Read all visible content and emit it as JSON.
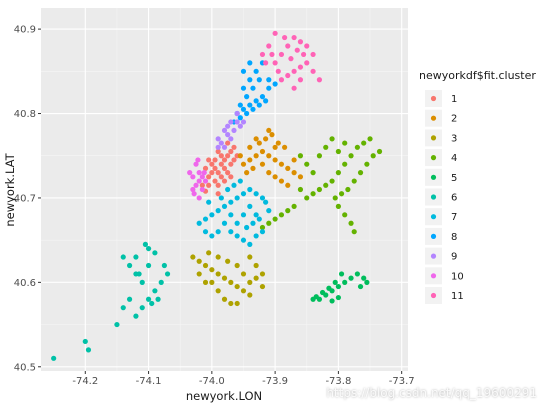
{
  "chart_data": {
    "type": "scatter",
    "xlabel": "newyork.LON",
    "ylabel": "newyork.LAT",
    "xlim": [
      -74.27,
      -73.69
    ],
    "ylim": [
      40.495,
      40.925
    ],
    "x_ticks": [
      -74.2,
      -74.1,
      -74.0,
      -73.9,
      -73.8,
      -73.7
    ],
    "x_tick_labels": [
      "-74.2",
      "-74.1",
      "-74.0",
      "-73.9",
      "-73.8",
      "-73.7"
    ],
    "y_ticks": [
      40.5,
      40.6,
      40.7,
      40.8,
      40.9
    ],
    "y_tick_labels": [
      "40.5",
      "40.6",
      "40.7",
      "40.8",
      "40.9"
    ],
    "grid": true,
    "background": "#ebebeb",
    "legend": {
      "title": "newyorkdf$fit.cluster",
      "position": "right",
      "entries": [
        "1",
        "2",
        "3",
        "4",
        "5",
        "6",
        "7",
        "8",
        "9",
        "10",
        "11"
      ]
    },
    "series": [
      {
        "name": "1",
        "color": "#F8766D",
        "points": [
          [
            -74.01,
            40.708
          ],
          [
            -74.005,
            40.715
          ],
          [
            -73.995,
            40.72
          ],
          [
            -73.99,
            40.73
          ],
          [
            -73.985,
            40.74
          ],
          [
            -73.98,
            40.745
          ],
          [
            -73.975,
            40.75
          ],
          [
            -73.97,
            40.755
          ],
          [
            -73.965,
            40.76
          ],
          [
            -73.985,
            40.725
          ],
          [
            -73.995,
            40.735
          ],
          [
            -74.0,
            40.74
          ],
          [
            -74.005,
            40.745
          ],
          [
            -74.0,
            40.73
          ],
          [
            -73.99,
            40.715
          ],
          [
            -73.98,
            40.735
          ],
          [
            -73.975,
            40.73
          ],
          [
            -73.97,
            40.74
          ],
          [
            -73.965,
            40.745
          ],
          [
            -73.96,
            40.75
          ],
          [
            -74.005,
            40.725
          ],
          [
            -73.995,
            40.745
          ],
          [
            -73.985,
            40.75
          ],
          [
            -73.975,
            40.765
          ],
          [
            -73.99,
            40.755
          ],
          [
            -74.01,
            40.735
          ],
          [
            -73.98,
            40.72
          ],
          [
            -73.97,
            40.725
          ],
          [
            -74.015,
            40.715
          ],
          [
            -73.99,
            40.705
          ]
        ]
      },
      {
        "name": "2",
        "color": "#DB8E00",
        "points": [
          [
            -73.95,
            40.74
          ],
          [
            -73.94,
            40.745
          ],
          [
            -73.93,
            40.75
          ],
          [
            -73.92,
            40.755
          ],
          [
            -73.91,
            40.75
          ],
          [
            -73.9,
            40.745
          ],
          [
            -73.89,
            40.74
          ],
          [
            -73.88,
            40.735
          ],
          [
            -73.87,
            40.73
          ],
          [
            -73.925,
            40.765
          ],
          [
            -73.915,
            40.77
          ],
          [
            -73.905,
            40.775
          ],
          [
            -73.895,
            40.765
          ],
          [
            -73.885,
            40.76
          ],
          [
            -73.935,
            40.735
          ],
          [
            -73.945,
            40.73
          ],
          [
            -73.91,
            40.73
          ],
          [
            -73.9,
            40.725
          ],
          [
            -73.89,
            40.72
          ],
          [
            -73.88,
            40.715
          ],
          [
            -73.86,
            40.725
          ],
          [
            -73.92,
            40.74
          ],
          [
            -73.94,
            40.76
          ],
          [
            -73.93,
            40.77
          ],
          [
            -73.955,
            40.75
          ],
          [
            -73.9,
            40.76
          ],
          [
            -73.87,
            40.745
          ],
          [
            -73.91,
            40.78
          ]
        ]
      },
      {
        "name": "3",
        "color": "#AEA200",
        "points": [
          [
            -74.03,
            40.63
          ],
          [
            -74.02,
            40.625
          ],
          [
            -74.01,
            40.62
          ],
          [
            -74.0,
            40.615
          ],
          [
            -73.99,
            40.61
          ],
          [
            -73.98,
            40.605
          ],
          [
            -73.97,
            40.6
          ],
          [
            -73.96,
            40.595
          ],
          [
            -73.95,
            40.59
          ],
          [
            -73.94,
            40.585
          ],
          [
            -74.0,
            40.6
          ],
          [
            -73.99,
            40.59
          ],
          [
            -73.98,
            40.58
          ],
          [
            -73.97,
            40.575
          ],
          [
            -73.96,
            40.575
          ],
          [
            -74.02,
            40.61
          ],
          [
            -74.01,
            40.6
          ],
          [
            -73.95,
            40.61
          ],
          [
            -73.94,
            40.6
          ],
          [
            -73.93,
            40.605
          ],
          [
            -73.92,
            40.61
          ],
          [
            -73.93,
            40.62
          ],
          [
            -73.94,
            40.63
          ],
          [
            -74.005,
            40.635
          ],
          [
            -73.99,
            40.63
          ],
          [
            -73.975,
            40.625
          ],
          [
            -73.96,
            40.62
          ],
          [
            -73.92,
            40.595
          ]
        ]
      },
      {
        "name": "4",
        "color": "#64B200",
        "points": [
          [
            -73.85,
            40.7
          ],
          [
            -73.84,
            40.705
          ],
          [
            -73.83,
            40.71
          ],
          [
            -73.82,
            40.715
          ],
          [
            -73.81,
            40.72
          ],
          [
            -73.8,
            40.73
          ],
          [
            -73.79,
            40.74
          ],
          [
            -73.78,
            40.75
          ],
          [
            -73.77,
            40.76
          ],
          [
            -73.76,
            40.765
          ],
          [
            -73.75,
            40.77
          ],
          [
            -73.83,
            40.75
          ],
          [
            -73.82,
            40.76
          ],
          [
            -73.81,
            40.77
          ],
          [
            -73.8,
            40.755
          ],
          [
            -73.79,
            40.765
          ],
          [
            -73.86,
            40.71
          ],
          [
            -73.87,
            40.69
          ],
          [
            -73.88,
            40.685
          ],
          [
            -73.89,
            40.68
          ],
          [
            -73.9,
            40.675
          ],
          [
            -73.91,
            40.67
          ],
          [
            -73.92,
            40.665
          ],
          [
            -73.805,
            40.7
          ],
          [
            -73.795,
            40.705
          ],
          [
            -73.785,
            40.71
          ],
          [
            -73.775,
            40.72
          ],
          [
            -73.84,
            40.73
          ],
          [
            -73.85,
            40.74
          ],
          [
            -73.86,
            40.75
          ],
          [
            -73.765,
            40.73
          ],
          [
            -73.755,
            40.74
          ],
          [
            -73.745,
            40.75
          ],
          [
            -73.735,
            40.755
          ],
          [
            -73.8,
            40.69
          ],
          [
            -73.79,
            40.68
          ],
          [
            -73.78,
            40.67
          ],
          [
            -73.775,
            40.66
          ]
        ]
      },
      {
        "name": "5",
        "color": "#00BD5C",
        "points": [
          [
            -73.83,
            40.58
          ],
          [
            -73.82,
            40.585
          ],
          [
            -73.81,
            40.59
          ],
          [
            -73.8,
            40.595
          ],
          [
            -73.79,
            40.6
          ],
          [
            -73.78,
            40.605
          ],
          [
            -73.77,
            40.61
          ],
          [
            -73.76,
            40.605
          ],
          [
            -73.755,
            40.6
          ],
          [
            -73.765,
            40.595
          ],
          [
            -73.835,
            40.583
          ],
          [
            -73.825,
            40.588
          ],
          [
            -73.815,
            40.593
          ],
          [
            -73.805,
            40.6
          ],
          [
            -73.795,
            40.61
          ],
          [
            -73.84,
            40.58
          ],
          [
            -73.81,
            40.578
          ],
          [
            -73.8,
            40.582
          ]
        ]
      },
      {
        "name": "6",
        "color": "#00C1A7",
        "points": [
          [
            -74.25,
            40.51
          ],
          [
            -74.2,
            40.53
          ],
          [
            -74.195,
            40.52
          ],
          [
            -74.15,
            40.55
          ],
          [
            -74.14,
            40.57
          ],
          [
            -74.13,
            40.58
          ],
          [
            -74.12,
            40.56
          ],
          [
            -74.11,
            40.57
          ],
          [
            -74.1,
            40.58
          ],
          [
            -74.09,
            40.59
          ],
          [
            -74.08,
            40.6
          ],
          [
            -74.085,
            40.58
          ],
          [
            -74.095,
            40.575
          ],
          [
            -74.11,
            40.6
          ],
          [
            -74.12,
            40.61
          ],
          [
            -74.13,
            40.62
          ],
          [
            -74.14,
            40.63
          ],
          [
            -74.1,
            40.64
          ],
          [
            -74.09,
            40.635
          ],
          [
            -74.075,
            40.62
          ],
          [
            -74.07,
            40.61
          ],
          [
            -74.1,
            40.62
          ],
          [
            -74.12,
            40.63
          ],
          [
            -74.105,
            40.645
          ],
          [
            -74.115,
            40.61
          ]
        ]
      },
      {
        "name": "7",
        "color": "#00BADE",
        "points": [
          [
            -74.02,
            40.67
          ],
          [
            -74.01,
            40.675
          ],
          [
            -74.0,
            40.68
          ],
          [
            -73.99,
            40.685
          ],
          [
            -73.98,
            40.69
          ],
          [
            -73.97,
            40.695
          ],
          [
            -73.96,
            40.7
          ],
          [
            -73.95,
            40.705
          ],
          [
            -73.94,
            40.71
          ],
          [
            -73.93,
            40.705
          ],
          [
            -73.92,
            40.7
          ],
          [
            -73.98,
            40.67
          ],
          [
            -73.97,
            40.66
          ],
          [
            -73.96,
            40.655
          ],
          [
            -73.95,
            40.65
          ],
          [
            -73.94,
            40.645
          ],
          [
            -73.93,
            40.655
          ],
          [
            -73.92,
            40.66
          ],
          [
            -73.99,
            40.66
          ],
          [
            -74.0,
            40.655
          ],
          [
            -73.975,
            40.71
          ],
          [
            -73.965,
            40.715
          ],
          [
            -73.955,
            40.72
          ],
          [
            -73.95,
            40.68
          ],
          [
            -73.94,
            40.69
          ],
          [
            -73.93,
            40.68
          ],
          [
            -73.96,
            40.67
          ],
          [
            -73.985,
            40.7
          ],
          [
            -74.005,
            40.695
          ],
          [
            -73.945,
            40.665
          ],
          [
            -73.935,
            40.67
          ],
          [
            -73.925,
            40.675
          ],
          [
            -73.91,
            40.685
          ],
          [
            -73.915,
            40.695
          ],
          [
            -74.01,
            40.66
          ],
          [
            -73.97,
            40.68
          ]
        ]
      },
      {
        "name": "8",
        "color": "#00A6FF",
        "points": [
          [
            -73.96,
            40.8
          ],
          [
            -73.95,
            40.805
          ],
          [
            -73.94,
            40.81
          ],
          [
            -73.93,
            40.815
          ],
          [
            -73.92,
            40.82
          ],
          [
            -73.91,
            40.83
          ],
          [
            -73.945,
            40.82
          ],
          [
            -73.935,
            40.83
          ],
          [
            -73.925,
            40.84
          ],
          [
            -73.94,
            40.84
          ],
          [
            -73.95,
            40.83
          ],
          [
            -73.955,
            40.81
          ],
          [
            -73.93,
            40.85
          ],
          [
            -73.92,
            40.86
          ],
          [
            -73.91,
            40.84
          ],
          [
            -73.9,
            40.835
          ],
          [
            -73.965,
            40.79
          ],
          [
            -73.955,
            40.795
          ],
          [
            -73.945,
            40.8
          ],
          [
            -73.935,
            40.805
          ],
          [
            -73.925,
            40.81
          ],
          [
            -73.915,
            40.815
          ],
          [
            -73.94,
            40.86
          ],
          [
            -73.95,
            40.85
          ]
        ]
      },
      {
        "name": "9",
        "color": "#B385FF",
        "points": [
          [
            -73.98,
            40.76
          ],
          [
            -73.97,
            40.77
          ],
          [
            -73.965,
            40.78
          ],
          [
            -73.96,
            40.79
          ],
          [
            -73.975,
            40.775
          ],
          [
            -73.985,
            40.765
          ],
          [
            -73.99,
            40.77
          ],
          [
            -73.98,
            40.78
          ],
          [
            -73.97,
            40.79
          ],
          [
            -73.955,
            40.785
          ],
          [
            -73.95,
            40.79
          ],
          [
            -73.96,
            40.8
          ],
          [
            -73.99,
            40.76
          ],
          [
            -73.975,
            40.785
          ]
        ]
      },
      {
        "name": "10",
        "color": "#EF67EB",
        "points": [
          [
            -74.02,
            40.7
          ],
          [
            -74.015,
            40.71
          ],
          [
            -74.025,
            40.715
          ],
          [
            -74.02,
            40.72
          ],
          [
            -74.015,
            40.725
          ],
          [
            -74.02,
            40.73
          ],
          [
            -74.025,
            40.74
          ],
          [
            -74.03,
            40.71
          ],
          [
            -74.03,
            40.725
          ],
          [
            -74.01,
            40.72
          ],
          [
            -74.035,
            40.73
          ],
          [
            -74.028,
            40.705
          ],
          [
            -74.012,
            40.73
          ],
          [
            -74.022,
            40.745
          ]
        ]
      },
      {
        "name": "11",
        "color": "#FF63B6",
        "points": [
          [
            -73.9,
            40.86
          ],
          [
            -73.89,
            40.87
          ],
          [
            -73.88,
            40.88
          ],
          [
            -73.87,
            40.89
          ],
          [
            -73.86,
            40.885
          ],
          [
            -73.85,
            40.88
          ],
          [
            -73.84,
            40.87
          ],
          [
            -73.85,
            40.86
          ],
          [
            -73.86,
            40.855
          ],
          [
            -73.87,
            40.85
          ],
          [
            -73.88,
            40.845
          ],
          [
            -73.89,
            40.84
          ],
          [
            -73.9,
            40.895
          ],
          [
            -73.91,
            40.88
          ],
          [
            -73.92,
            40.87
          ],
          [
            -73.915,
            40.86
          ],
          [
            -73.83,
            40.84
          ],
          [
            -73.86,
            40.84
          ],
          [
            -73.87,
            40.83
          ],
          [
            -73.84,
            40.85
          ],
          [
            -73.895,
            40.85
          ],
          [
            -73.905,
            40.87
          ],
          [
            -73.875,
            40.865
          ],
          [
            -73.865,
            40.875
          ],
          [
            -73.855,
            40.87
          ],
          [
            -73.885,
            40.89
          ]
        ]
      }
    ]
  },
  "watermark": "https://blog.csdn.net/qq_19600291"
}
